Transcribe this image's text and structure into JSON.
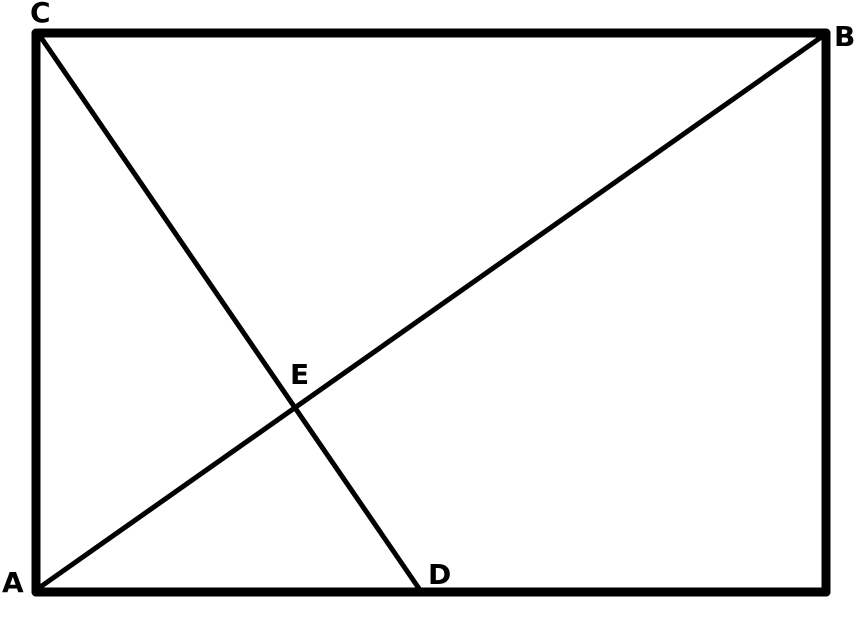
{
  "figure": {
    "description_labels": {
      "A": "A",
      "B": "B",
      "C": "C",
      "D": "D",
      "E": "E"
    }
  },
  "colors": {
    "line": "#000000",
    "background": "#ffffff"
  }
}
